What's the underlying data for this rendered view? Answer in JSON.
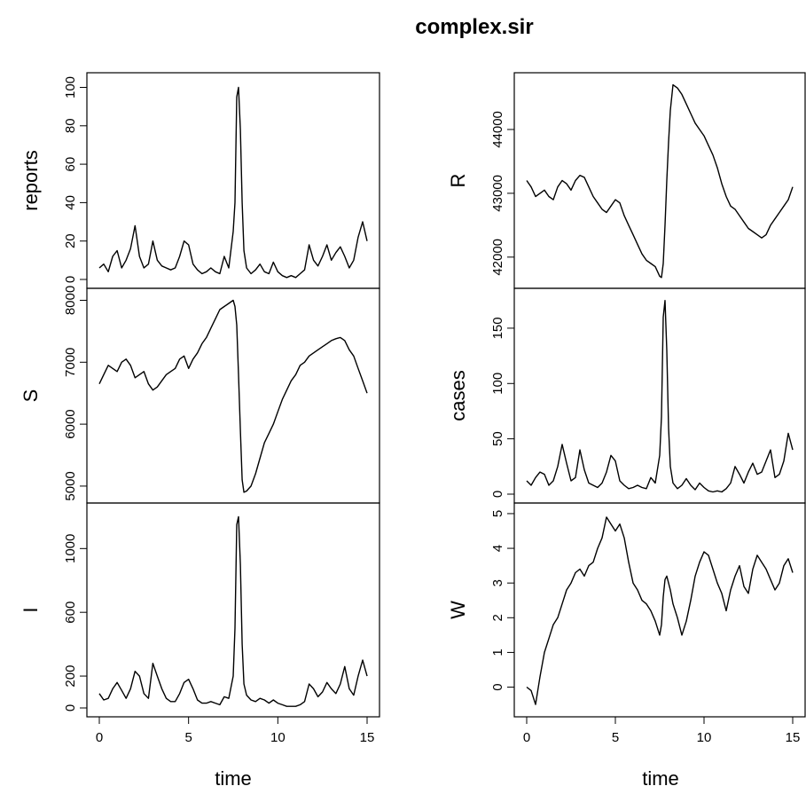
{
  "title": "complex.sir",
  "xlabel": "time",
  "chart_data": [
    {
      "type": "line",
      "ylabel": "reports",
      "xlim": [
        0,
        15
      ],
      "ylim": [
        0,
        103
      ],
      "yticks": [
        0,
        20,
        40,
        60,
        80,
        100
      ],
      "xticks": [],
      "x": [
        0,
        0.25,
        0.5,
        0.75,
        1,
        1.25,
        1.5,
        1.75,
        2,
        2.25,
        2.5,
        2.75,
        3,
        3.25,
        3.5,
        3.75,
        4,
        4.25,
        4.5,
        4.75,
        5,
        5.25,
        5.5,
        5.75,
        6,
        6.25,
        6.5,
        6.75,
        7,
        7.25,
        7.5,
        7.6,
        7.7,
        7.8,
        7.9,
        8,
        8.1,
        8.25,
        8.5,
        8.75,
        9,
        9.25,
        9.5,
        9.75,
        10,
        10.25,
        10.5,
        10.75,
        11,
        11.25,
        11.5,
        11.75,
        12,
        12.25,
        12.5,
        12.75,
        13,
        13.25,
        13.5,
        13.75,
        14,
        14.25,
        14.5,
        14.75,
        15
      ],
      "y": [
        6,
        8,
        4,
        12,
        15,
        6,
        10,
        16,
        28,
        12,
        6,
        8,
        20,
        10,
        7,
        6,
        5,
        6,
        12,
        20,
        18,
        8,
        5,
        3,
        4,
        6,
        4,
        3,
        12,
        6,
        25,
        40,
        95,
        100,
        78,
        40,
        15,
        6,
        3,
        5,
        8,
        4,
        3,
        9,
        4,
        2,
        1,
        2,
        1,
        3,
        5,
        18,
        10,
        7,
        12,
        18,
        10,
        14,
        17,
        12,
        6,
        10,
        22,
        30,
        20
      ]
    },
    {
      "type": "line",
      "ylabel": "S",
      "xlim": [
        0,
        15
      ],
      "ylim": [
        4870,
        8050
      ],
      "yticks": [
        5000,
        6000,
        7000,
        8000
      ],
      "xticks": [],
      "x": [
        0,
        0.25,
        0.5,
        0.75,
        1,
        1.25,
        1.5,
        1.75,
        2,
        2.25,
        2.5,
        2.75,
        3,
        3.25,
        3.5,
        3.75,
        4,
        4.25,
        4.5,
        4.75,
        5,
        5.25,
        5.5,
        5.75,
        6,
        6.25,
        6.5,
        6.75,
        7,
        7.25,
        7.5,
        7.6,
        7.7,
        7.8,
        7.9,
        8,
        8.1,
        8.25,
        8.5,
        8.75,
        9,
        9.25,
        9.5,
        9.75,
        10,
        10.25,
        10.5,
        10.75,
        11,
        11.25,
        11.5,
        11.75,
        12,
        12.25,
        12.5,
        12.75,
        13,
        13.25,
        13.5,
        13.75,
        14,
        14.25,
        14.5,
        14.75,
        15
      ],
      "y": [
        6650,
        6800,
        6950,
        6900,
        6850,
        7000,
        7050,
        6950,
        6750,
        6800,
        6850,
        6650,
        6550,
        6600,
        6700,
        6800,
        6850,
        6900,
        7050,
        7100,
        6900,
        7050,
        7150,
        7300,
        7400,
        7550,
        7700,
        7850,
        7900,
        7950,
        8000,
        7900,
        7600,
        6800,
        5900,
        5100,
        4900,
        4920,
        5000,
        5200,
        5450,
        5700,
        5850,
        6000,
        6200,
        6400,
        6550,
        6700,
        6800,
        6950,
        7000,
        7100,
        7150,
        7200,
        7250,
        7300,
        7350,
        7380,
        7400,
        7350,
        7200,
        7100,
        6900,
        6700,
        6500
      ]
    },
    {
      "type": "line",
      "ylabel": "I",
      "xlim": [
        0,
        15
      ],
      "ylim": [
        0,
        1230
      ],
      "yticks": [
        0,
        200,
        600,
        1000
      ],
      "xticks": [
        0,
        5,
        10,
        15
      ],
      "x": [
        0,
        0.25,
        0.5,
        0.75,
        1,
        1.25,
        1.5,
        1.75,
        2,
        2.25,
        2.5,
        2.75,
        3,
        3.25,
        3.5,
        3.75,
        4,
        4.25,
        4.5,
        4.75,
        5,
        5.25,
        5.5,
        5.75,
        6,
        6.25,
        6.5,
        6.75,
        7,
        7.25,
        7.5,
        7.6,
        7.7,
        7.8,
        7.9,
        8,
        8.1,
        8.25,
        8.5,
        8.75,
        9,
        9.25,
        9.5,
        9.75,
        10,
        10.25,
        10.5,
        10.75,
        11,
        11.25,
        11.5,
        11.75,
        12,
        12.25,
        12.5,
        12.75,
        13,
        13.25,
        13.5,
        13.75,
        14,
        14.25,
        14.5,
        14.75,
        15
      ],
      "y": [
        90,
        50,
        60,
        120,
        160,
        110,
        60,
        120,
        230,
        200,
        90,
        60,
        280,
        200,
        120,
        60,
        40,
        40,
        90,
        160,
        180,
        120,
        50,
        30,
        30,
        40,
        30,
        20,
        70,
        60,
        200,
        500,
        1150,
        1200,
        900,
        400,
        150,
        80,
        50,
        40,
        60,
        50,
        30,
        50,
        30,
        20,
        10,
        10,
        10,
        20,
        40,
        150,
        120,
        70,
        100,
        160,
        120,
        90,
        150,
        260,
        120,
        80,
        200,
        300,
        200
      ]
    },
    {
      "type": "line",
      "ylabel": "R",
      "xlim": [
        0,
        15
      ],
      "ylim": [
        41650,
        44750
      ],
      "yticks": [
        42000,
        43000,
        44000
      ],
      "xticks": [],
      "x": [
        0,
        0.25,
        0.5,
        0.75,
        1,
        1.25,
        1.5,
        1.75,
        2,
        2.25,
        2.5,
        2.75,
        3,
        3.25,
        3.5,
        3.75,
        4,
        4.25,
        4.5,
        4.75,
        5,
        5.25,
        5.5,
        5.75,
        6,
        6.25,
        6.5,
        6.75,
        7,
        7.25,
        7.5,
        7.6,
        7.7,
        7.8,
        7.9,
        8,
        8.1,
        8.25,
        8.5,
        8.75,
        9,
        9.25,
        9.5,
        9.75,
        10,
        10.25,
        10.5,
        10.75,
        11,
        11.25,
        11.5,
        11.75,
        12,
        12.25,
        12.5,
        12.75,
        13,
        13.25,
        13.5,
        13.75,
        14,
        14.25,
        14.5,
        14.75,
        15
      ],
      "y": [
        43200,
        43100,
        42950,
        43000,
        43050,
        42950,
        42900,
        43100,
        43200,
        43150,
        43050,
        43200,
        43280,
        43250,
        43100,
        42950,
        42850,
        42750,
        42700,
        42800,
        42900,
        42850,
        42650,
        42500,
        42350,
        42200,
        42050,
        41950,
        41900,
        41850,
        41700,
        41680,
        41900,
        42500,
        43200,
        43800,
        44300,
        44700,
        44650,
        44550,
        44400,
        44250,
        44100,
        44000,
        43900,
        43750,
        43600,
        43400,
        43150,
        42950,
        42800,
        42750,
        42650,
        42550,
        42450,
        42400,
        42350,
        42300,
        42350,
        42500,
        42600,
        42700,
        42800,
        42900,
        43100
      ]
    },
    {
      "type": "line",
      "ylabel": "cases",
      "xlim": [
        0,
        15
      ],
      "ylim": [
        0,
        178
      ],
      "yticks": [
        0,
        50,
        100,
        150
      ],
      "xticks": [],
      "x": [
        0,
        0.25,
        0.5,
        0.75,
        1,
        1.25,
        1.5,
        1.75,
        2,
        2.25,
        2.5,
        2.75,
        3,
        3.25,
        3.5,
        3.75,
        4,
        4.25,
        4.5,
        4.75,
        5,
        5.25,
        5.5,
        5.75,
        6,
        6.25,
        6.5,
        6.75,
        7,
        7.25,
        7.5,
        7.6,
        7.7,
        7.8,
        7.9,
        8,
        8.1,
        8.25,
        8.5,
        8.75,
        9,
        9.25,
        9.5,
        9.75,
        10,
        10.25,
        10.5,
        10.75,
        11,
        11.25,
        11.5,
        11.75,
        12,
        12.25,
        12.5,
        12.75,
        13,
        13.25,
        13.5,
        13.75,
        14,
        14.25,
        14.5,
        14.75,
        15
      ],
      "y": [
        12,
        8,
        15,
        20,
        18,
        8,
        12,
        25,
        45,
        28,
        12,
        15,
        40,
        22,
        10,
        8,
        6,
        10,
        20,
        35,
        30,
        12,
        8,
        5,
        6,
        8,
        6,
        5,
        15,
        10,
        35,
        70,
        160,
        175,
        130,
        60,
        25,
        10,
        5,
        8,
        14,
        8,
        4,
        10,
        6,
        3,
        2,
        3,
        2,
        5,
        10,
        25,
        18,
        10,
        20,
        28,
        18,
        20,
        30,
        40,
        15,
        18,
        30,
        55,
        40
      ]
    },
    {
      "type": "line",
      "ylabel": "W",
      "xlim": [
        0,
        15
      ],
      "ylim": [
        -0.6,
        5.05
      ],
      "yticks": [
        0,
        1,
        2,
        3,
        4,
        5
      ],
      "xticks": [
        0,
        5,
        10,
        15
      ],
      "x": [
        0,
        0.25,
        0.5,
        0.75,
        1,
        1.25,
        1.5,
        1.75,
        2,
        2.25,
        2.5,
        2.75,
        3,
        3.25,
        3.5,
        3.75,
        4,
        4.25,
        4.5,
        4.75,
        5,
        5.25,
        5.5,
        5.75,
        6,
        6.25,
        6.5,
        6.75,
        7,
        7.25,
        7.5,
        7.6,
        7.7,
        7.8,
        7.9,
        8,
        8.1,
        8.25,
        8.5,
        8.75,
        9,
        9.25,
        9.5,
        9.75,
        10,
        10.25,
        10.5,
        10.75,
        11,
        11.25,
        11.5,
        11.75,
        12,
        12.25,
        12.5,
        12.75,
        13,
        13.25,
        13.5,
        13.75,
        14,
        14.25,
        14.5,
        14.75,
        15
      ],
      "y": [
        0,
        -0.1,
        -0.5,
        0.3,
        1.0,
        1.4,
        1.8,
        2.0,
        2.4,
        2.8,
        3.0,
        3.3,
        3.4,
        3.2,
        3.5,
        3.6,
        4.0,
        4.3,
        4.9,
        4.7,
        4.5,
        4.7,
        4.3,
        3.6,
        3.0,
        2.8,
        2.5,
        2.4,
        2.2,
        1.9,
        1.5,
        1.8,
        2.6,
        3.1,
        3.2,
        3.0,
        2.8,
        2.4,
        2.0,
        1.5,
        1.9,
        2.5,
        3.2,
        3.6,
        3.9,
        3.8,
        3.4,
        3.0,
        2.7,
        2.2,
        2.8,
        3.2,
        3.5,
        2.9,
        2.7,
        3.4,
        3.8,
        3.6,
        3.4,
        3.1,
        2.8,
        3.0,
        3.5,
        3.7,
        3.3
      ]
    }
  ]
}
